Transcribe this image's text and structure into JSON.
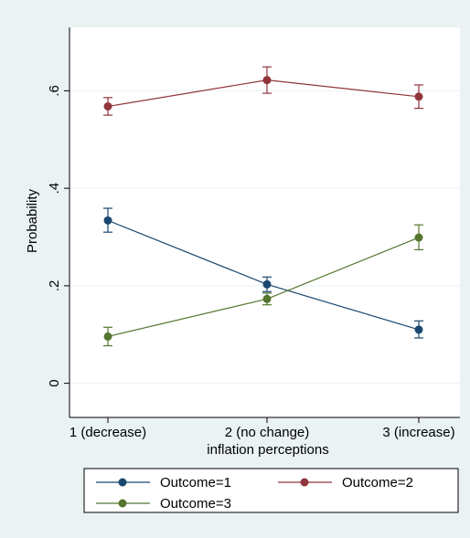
{
  "chart_data": {
    "type": "line",
    "categories": [
      "1 (decrease)",
      "2 (no change)",
      "3 (increase)"
    ],
    "xlabel": "inflation perceptions",
    "ylabel": "Probability",
    "ylim": [
      -0.07,
      0.73
    ],
    "yticks": [
      0,
      0.2,
      0.4,
      0.6
    ],
    "ytick_labels": [
      "0",
      ".2",
      ".4",
      ".6"
    ],
    "grid": true,
    "legend_position": "bottom",
    "error_bars": true,
    "series": [
      {
        "name": "Outcome=1",
        "color": "#1a476f",
        "values": [
          0.334,
          0.203,
          0.11
        ],
        "ci_low": [
          0.31,
          0.188,
          0.093
        ],
        "ci_high": [
          0.359,
          0.218,
          0.128
        ]
      },
      {
        "name": "Outcome=2",
        "color": "#90353b",
        "values": [
          0.568,
          0.622,
          0.588
        ],
        "ci_low": [
          0.55,
          0.595,
          0.564
        ],
        "ci_high": [
          0.586,
          0.649,
          0.612
        ]
      },
      {
        "name": "Outcome=3",
        "color": "#55752f",
        "values": [
          0.096,
          0.173,
          0.299
        ],
        "ci_low": [
          0.077,
          0.161,
          0.274
        ],
        "ci_high": [
          0.115,
          0.185,
          0.325
        ]
      }
    ]
  }
}
